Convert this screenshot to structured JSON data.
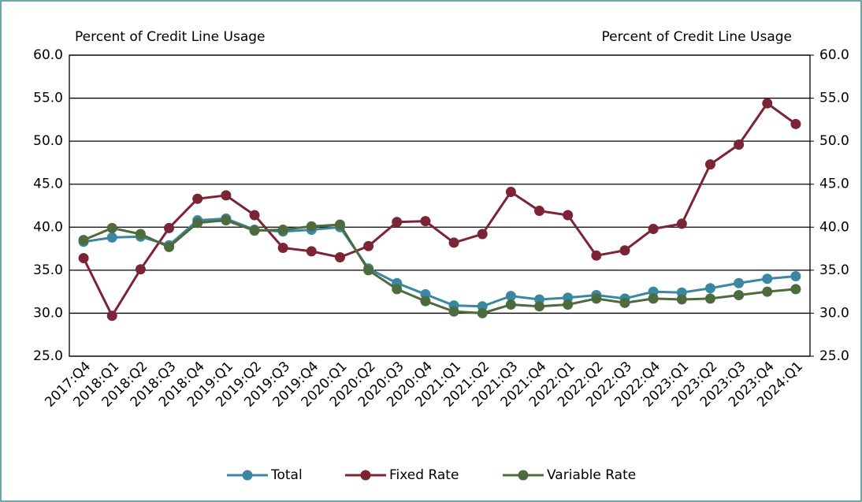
{
  "chart_data": {
    "type": "line",
    "y_label": "Percent of Credit Line Usage",
    "y2_label": "Percent of Credit Line Usage",
    "categories": [
      "2017:Q4",
      "2018:Q1",
      "2018:Q2",
      "2018:Q3",
      "2018:Q4",
      "2019:Q1",
      "2019:Q2",
      "2019:Q3",
      "2019:Q4",
      "2020:Q1",
      "2020:Q2",
      "2020:Q3",
      "2020:Q4",
      "2021:Q1",
      "2021:Q2",
      "2021:Q3",
      "2021:Q4",
      "2022:Q1",
      "2022:Q2",
      "2022:Q3",
      "2022:Q4",
      "2023:Q1",
      "2023:Q2",
      "2023:Q3",
      "2023:Q4",
      "2024:Q1"
    ],
    "series": [
      {
        "name": "Total",
        "color": "#3a87a1",
        "values": [
          38.3,
          38.8,
          38.9,
          37.9,
          40.8,
          41.0,
          39.7,
          39.5,
          39.7,
          40.0,
          35.2,
          33.5,
          32.2,
          30.9,
          30.8,
          32.0,
          31.6,
          31.8,
          32.1,
          31.7,
          32.5,
          32.4,
          32.9,
          33.5,
          34.0,
          34.3
        ]
      },
      {
        "name": "Fixed Rate",
        "color": "#7b2436",
        "values": [
          36.4,
          29.7,
          35.1,
          39.9,
          43.3,
          43.7,
          41.4,
          37.6,
          37.2,
          36.5,
          37.8,
          40.6,
          40.7,
          38.2,
          39.2,
          44.1,
          41.9,
          41.4,
          36.7,
          37.3,
          39.8,
          40.4,
          47.3,
          49.6,
          54.4,
          52.0
        ]
      },
      {
        "name": "Variable Rate",
        "color": "#4e6b3d",
        "values": [
          38.5,
          39.9,
          39.2,
          37.7,
          40.5,
          40.8,
          39.6,
          39.7,
          40.1,
          40.3,
          35.0,
          32.8,
          31.4,
          30.2,
          30.0,
          31.0,
          30.8,
          31.0,
          31.7,
          31.2,
          31.7,
          31.6,
          31.7,
          32.1,
          32.5,
          32.8
        ]
      }
    ],
    "ylim": [
      25,
      60
    ],
    "yticks": [
      {
        "value": 25,
        "label": "25.0"
      },
      {
        "value": 30,
        "label": "30.0"
      },
      {
        "value": 35,
        "label": "35.0"
      },
      {
        "value": 40,
        "label": "40.0"
      },
      {
        "value": 45,
        "label": "45.0"
      },
      {
        "value": 50,
        "label": "50.0"
      },
      {
        "value": 55,
        "label": "55.0"
      },
      {
        "value": 60,
        "label": "60.0"
      }
    ],
    "y2lim": [
      25,
      60
    ],
    "y2ticks": [
      {
        "value": 25,
        "label": "25.0"
      },
      {
        "value": 30,
        "label": "30.0"
      },
      {
        "value": 35,
        "label": "35.0"
      },
      {
        "value": 40,
        "label": "40.0"
      },
      {
        "value": 45,
        "label": "45.0"
      },
      {
        "value": 50,
        "label": "50.0"
      },
      {
        "value": 55,
        "label": "55.0"
      },
      {
        "value": 60,
        "label": "60.0"
      }
    ],
    "grid": true,
    "legend": "bottom"
  }
}
